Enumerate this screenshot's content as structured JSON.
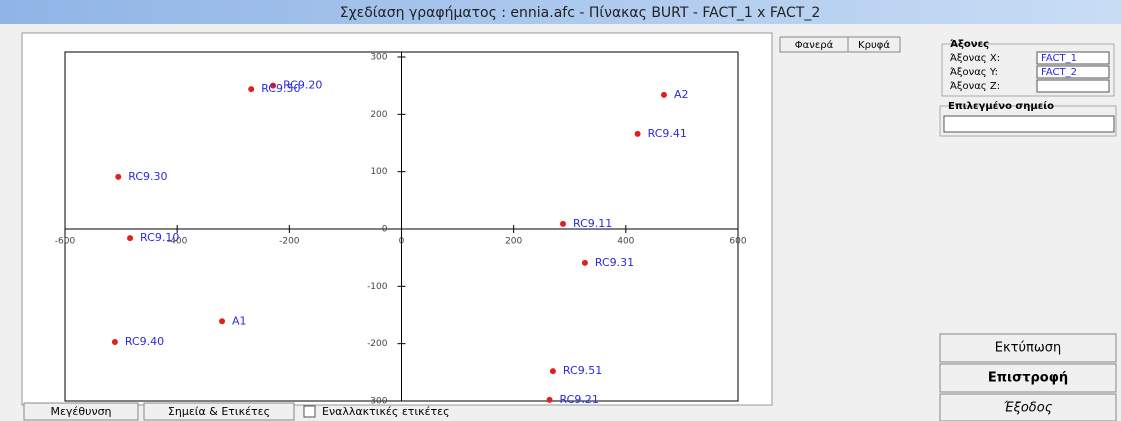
{
  "window_title": "Σχεδίαση γραφήματος :  ennia.afc  -  Πίνακας BURT  -  FACT_1 x FACT_2",
  "tabs": [
    "Φανερά",
    "Κρυφά"
  ],
  "axes_panel": {
    "title": "Άξονες",
    "rows": [
      {
        "label": "Άξονας X:",
        "value": "FACT_1"
      },
      {
        "label": "Άξονας Y:",
        "value": "FACT_2"
      },
      {
        "label": "Άξονας Z:"
      }
    ]
  },
  "selected_point": {
    "title": "Επιλεγμένο σημείο"
  },
  "buttons": [
    "Εκτύπωση",
    "Επιστροφή",
    "Έξοδος"
  ],
  "bottom_buttons": [
    "Μεγέθυνση",
    "Σημεία & Ετικέτες"
  ],
  "checkbox": "Εναλλακτικές ετικέτες",
  "chart_data": {
    "type": "scatter",
    "labels": [
      "RC9.20",
      "RC9.50",
      "A2",
      "RC9.41",
      "RC9.30",
      "RC9.11",
      "RC9.10",
      "RC9.31",
      "A1",
      "RC9.40",
      "RC9.51",
      "RC9.21"
    ],
    "x": [
      -229,
      -268,
      468,
      421,
      -505,
      288,
      -484,
      327,
      -320,
      -511,
      270,
      264
    ],
    "values": [
      250,
      244,
      234,
      166,
      91,
      9,
      -16,
      -59,
      -161,
      -197,
      -248,
      -298
    ],
    "color": "#e02020",
    "label_color": "#2a2ae0",
    "xlim": [
      -600,
      600
    ],
    "ylim": [
      -300,
      300
    ],
    "xticks": [
      -600,
      -400,
      -200,
      0,
      200,
      400,
      600
    ],
    "yticks": [
      -300,
      -200,
      -100,
      0,
      100,
      200,
      300
    ],
    "grid": false
  }
}
